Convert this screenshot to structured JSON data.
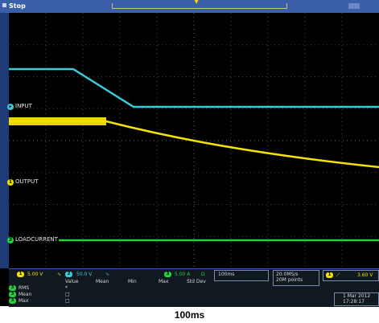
{
  "status": {
    "run_state": "Stop"
  },
  "channels": {
    "input_label": "INPUT",
    "output_label": "OUTPUT",
    "load_label": "LOADCURRENT",
    "ch1_num": "1",
    "ch2_num": "2",
    "ch3_num": "3"
  },
  "colors": {
    "ch1": "#f4e200",
    "ch2": "#3ccbd6",
    "ch3": "#1ed43a",
    "accent": "#3a5fa8"
  },
  "readout": {
    "ch1_scale": "5.00 V",
    "ch2_scale": "50.0 V",
    "ch3_scale": "5.00 A",
    "ch3_unit": "Ω",
    "timebase": "100ms",
    "sample_rate": "20.0MS/s",
    "record_length": "20M points",
    "trigger_level": "3.60 V",
    "date": "1 Mar 2012",
    "time": "17:28:17",
    "stats_headers": [
      "Value",
      "Mean",
      "Min",
      "Max",
      "Std Dev"
    ],
    "stats_rows": [
      "RMS",
      "Mean",
      "Max"
    ]
  },
  "caption": "100ms"
}
